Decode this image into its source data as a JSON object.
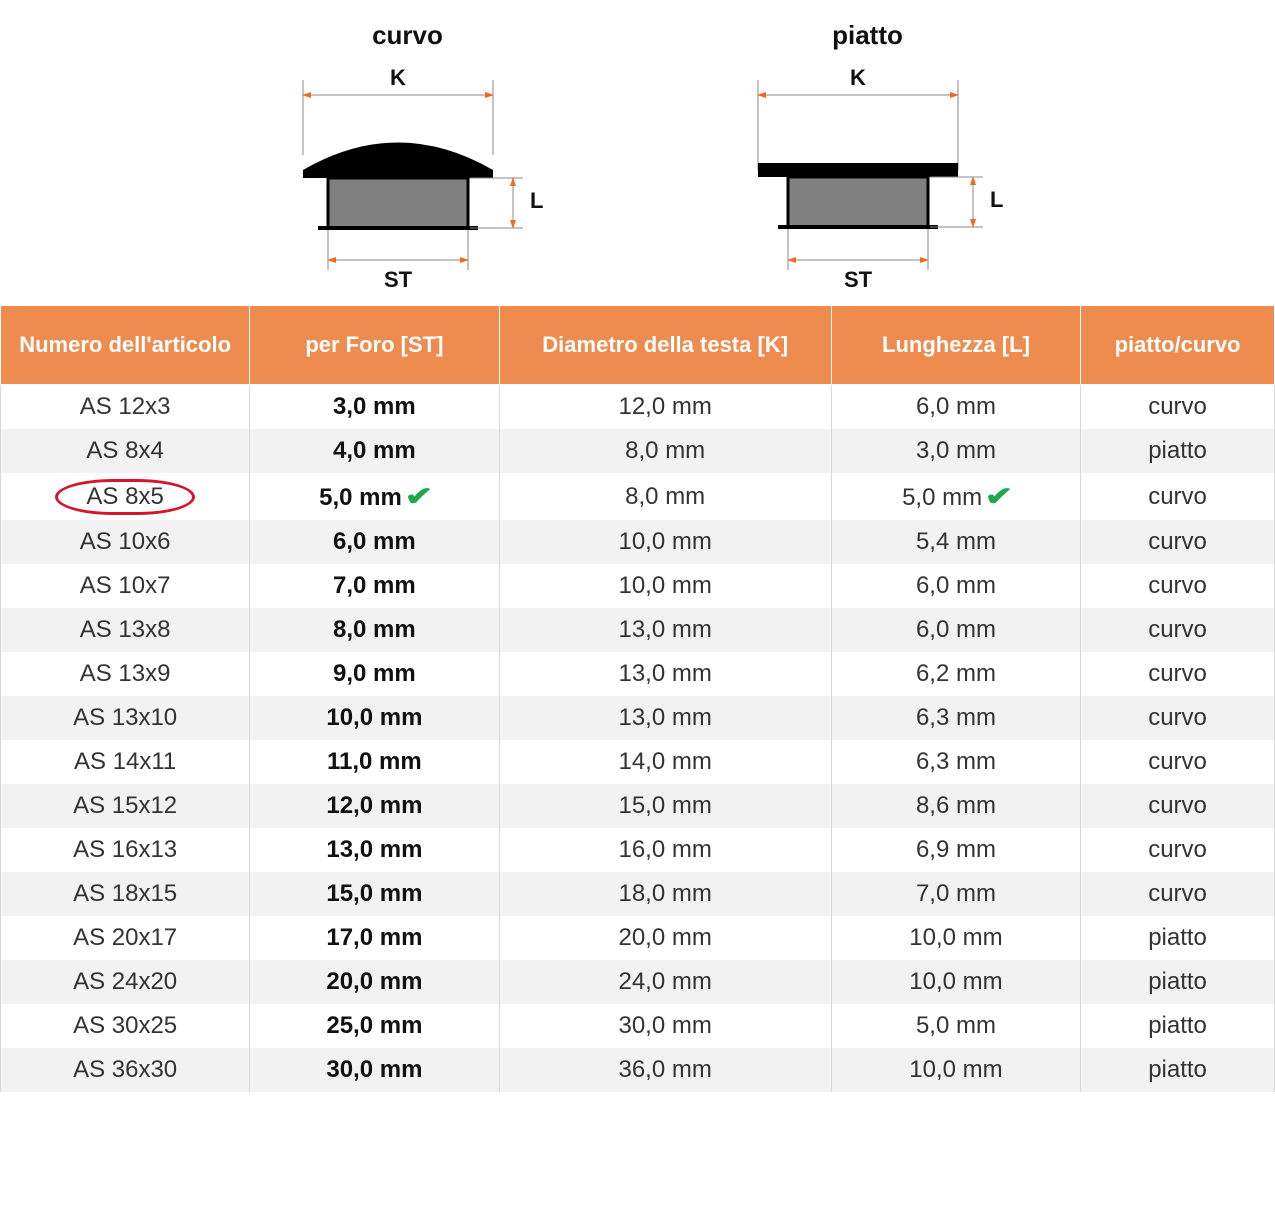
{
  "diagrams": {
    "curvo": {
      "title": "curvo",
      "K_label": "K",
      "L_label": "L",
      "ST_label": "ST"
    },
    "piatto": {
      "title": "piatto",
      "K_label": "K",
      "L_label": "L",
      "ST_label": "ST"
    },
    "colors": {
      "head_fill": "#000000",
      "body_fill": "#808080",
      "dim_line": "#888888",
      "arrow": "#ee6a1f",
      "text": "#111111"
    }
  },
  "table": {
    "header_bg": "#ee8c4f",
    "header_fg": "#ffffff",
    "row_alt_bg": "#f2f2f2",
    "columns": [
      "Numero dell'articolo",
      "per Foro [ST]",
      "Diametro della testa [K]",
      "Lunghezza [L]",
      "piatto/curvo"
    ],
    "highlight_row_index": 2,
    "highlight_ring_color": "#d4152a",
    "check_color": "#1fa84b",
    "rows": [
      {
        "article": "AS 12x3",
        "st": "3,0 mm",
        "k": "12,0 mm",
        "l": "6,0 mm",
        "type": "curvo",
        "st_check": false,
        "l_check": false
      },
      {
        "article": "AS 8x4",
        "st": "4,0 mm",
        "k": "8,0 mm",
        "l": "3,0 mm",
        "type": "piatto",
        "st_check": false,
        "l_check": false
      },
      {
        "article": "AS 8x5",
        "st": "5,0 mm",
        "k": "8,0 mm",
        "l": "5,0 mm",
        "type": "curvo",
        "st_check": true,
        "l_check": true
      },
      {
        "article": "AS 10x6",
        "st": "6,0 mm",
        "k": "10,0 mm",
        "l": "5,4 mm",
        "type": "curvo",
        "st_check": false,
        "l_check": false
      },
      {
        "article": "AS 10x7",
        "st": "7,0 mm",
        "k": "10,0 mm",
        "l": "6,0 mm",
        "type": "curvo",
        "st_check": false,
        "l_check": false
      },
      {
        "article": "AS 13x8",
        "st": "8,0 mm",
        "k": "13,0 mm",
        "l": "6,0 mm",
        "type": "curvo",
        "st_check": false,
        "l_check": false
      },
      {
        "article": "AS 13x9",
        "st": "9,0 mm",
        "k": "13,0 mm",
        "l": "6,2 mm",
        "type": "curvo",
        "st_check": false,
        "l_check": false
      },
      {
        "article": "AS 13x10",
        "st": "10,0 mm",
        "k": "13,0 mm",
        "l": "6,3 mm",
        "type": "curvo",
        "st_check": false,
        "l_check": false
      },
      {
        "article": "AS 14x11",
        "st": "11,0 mm",
        "k": "14,0 mm",
        "l": "6,3 mm",
        "type": "curvo",
        "st_check": false,
        "l_check": false
      },
      {
        "article": "AS 15x12",
        "st": "12,0 mm",
        "k": "15,0 mm",
        "l": "8,6 mm",
        "type": "curvo",
        "st_check": false,
        "l_check": false
      },
      {
        "article": "AS 16x13",
        "st": "13,0 mm",
        "k": "16,0 mm",
        "l": "6,9 mm",
        "type": "curvo",
        "st_check": false,
        "l_check": false
      },
      {
        "article": "AS 18x15",
        "st": "15,0 mm",
        "k": "18,0 mm",
        "l": "7,0 mm",
        "type": "curvo",
        "st_check": false,
        "l_check": false
      },
      {
        "article": "AS 20x17",
        "st": "17,0 mm",
        "k": "20,0 mm",
        "l": "10,0 mm",
        "type": "piatto",
        "st_check": false,
        "l_check": false
      },
      {
        "article": "AS 24x20",
        "st": "20,0 mm",
        "k": "24,0 mm",
        "l": "10,0 mm",
        "type": "piatto",
        "st_check": false,
        "l_check": false
      },
      {
        "article": "AS 30x25",
        "st": "25,0 mm",
        "k": "30,0 mm",
        "l": "5,0 mm",
        "type": "piatto",
        "st_check": false,
        "l_check": false
      },
      {
        "article": "AS 36x30",
        "st": "30,0 mm",
        "k": "36,0 mm",
        "l": "10,0 mm",
        "type": "piatto",
        "st_check": false,
        "l_check": false
      }
    ]
  }
}
